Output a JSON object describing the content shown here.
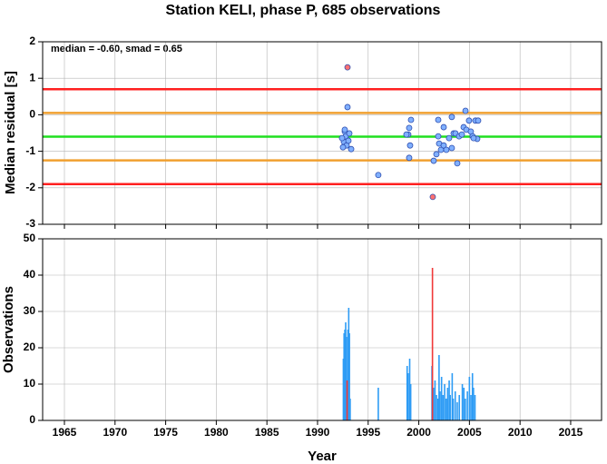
{
  "chart_data": [
    {
      "type": "scatter",
      "title": "Station KELI, phase P, 685 observations",
      "y_label": "Median residual [s]",
      "annotation": "median = -0.60, smad = 0.65",
      "xlim": [
        1962.85,
        2018.05
      ],
      "xticks": [
        1965,
        1970,
        1975,
        1980,
        1985,
        1990,
        1995,
        2000,
        2005,
        2010,
        2015
      ],
      "ylim": [
        -3,
        2
      ],
      "yticks": [
        -3,
        -2,
        -1,
        0,
        1,
        2
      ],
      "grid": true,
      "hlines": [
        {
          "value": 0.7,
          "color": "#ff2020"
        },
        {
          "value": 0.05,
          "color": "#f0a030"
        },
        {
          "value": -0.6,
          "color": "#20e020"
        },
        {
          "value": -1.25,
          "color": "#f0a030"
        },
        {
          "value": -1.9,
          "color": "#ff2020"
        }
      ],
      "series": [
        {
          "color": "#80b0ff",
          "x": [
            1992.96,
            1992.69,
            1992.78,
            1992.6,
            1992.87,
            1992.51,
            1993.32,
            1993.05,
            1993.14,
            1992.42,
            1992.69,
            1996.0,
            1999.23,
            1999.05,
            1998.96,
            1999.14,
            1999.05,
            1998.78,
            2001.47,
            2001.74,
            2002.19,
            2002.01,
            2001.92,
            2001.92,
            2002.46,
            2002.46,
            2002.72,
            2002.99,
            2003.26,
            2003.44,
            2003.26,
            2003.62,
            2003.8,
            2003.98,
            2004.25,
            2004.61,
            2004.43,
            2004.7,
            2004.96,
            2005.14,
            2005.32,
            2005.59,
            2005.77,
            2005.41,
            2005.86
          ],
          "values": [
            0.21,
            -0.46,
            -0.59,
            -0.74,
            -0.84,
            -0.89,
            -0.94,
            -0.71,
            -0.51,
            -0.64,
            -0.41,
            -1.65,
            -0.14,
            -0.36,
            -0.54,
            -0.84,
            -1.18,
            -0.54,
            -1.26,
            -1.08,
            -0.96,
            -0.79,
            -0.59,
            -0.14,
            -0.34,
            -0.84,
            -0.96,
            -0.64,
            -0.06,
            -0.51,
            -0.91,
            -0.51,
            -1.33,
            -0.59,
            -0.54,
            0.11,
            -0.34,
            -0.41,
            -0.16,
            -0.46,
            -0.59,
            -0.16,
            -0.66,
            -0.64,
            -0.16
          ]
        },
        {
          "color": "#ff7070",
          "x": [
            1992.96,
            2001.38
          ],
          "values": [
            1.3,
            -2.25
          ]
        }
      ]
    },
    {
      "type": "bar",
      "x_label": "Year",
      "y_label": "Observations",
      "xlim": [
        1962.85,
        2018.05
      ],
      "xticks": [
        1965,
        1970,
        1975,
        1980,
        1985,
        1990,
        1995,
        2000,
        2005,
        2010,
        2015
      ],
      "ylim": [
        0,
        50
      ],
      "yticks": [
        0,
        10,
        20,
        30,
        40,
        50
      ],
      "grid": true,
      "series": [
        {
          "color": "#2e9cf5",
          "x": [
            1992.55,
            1992.62,
            1992.7,
            1992.78,
            1992.85,
            1993.0,
            1993.08,
            1993.15,
            1993.22,
            1996.0,
            1998.85,
            1998.95,
            1999.1,
            1999.2,
            2001.3,
            2001.45,
            2001.6,
            2001.75,
            2001.9,
            2002.0,
            2002.1,
            2002.25,
            2002.4,
            2002.55,
            2002.7,
            2002.85,
            2003.0,
            2003.1,
            2003.3,
            2003.4,
            2003.6,
            2003.8,
            2004.0,
            2004.3,
            2004.45,
            2004.6,
            2004.8,
            2005.0,
            2005.15,
            2005.3,
            2005.4,
            2005.55
          ],
          "values": [
            17,
            24,
            25,
            27,
            23,
            25,
            31,
            24,
            6,
            9,
            15,
            13,
            17,
            10,
            15,
            9,
            11,
            7,
            6,
            18,
            8,
            12,
            7,
            10,
            6,
            9,
            11,
            7,
            13,
            6,
            8,
            5,
            7,
            10,
            9,
            6,
            8,
            12,
            7,
            13,
            9,
            7
          ]
        },
        {
          "color": "#f03838",
          "x": [
            1992.92,
            2001.35
          ],
          "values": [
            11,
            42
          ]
        }
      ]
    }
  ]
}
